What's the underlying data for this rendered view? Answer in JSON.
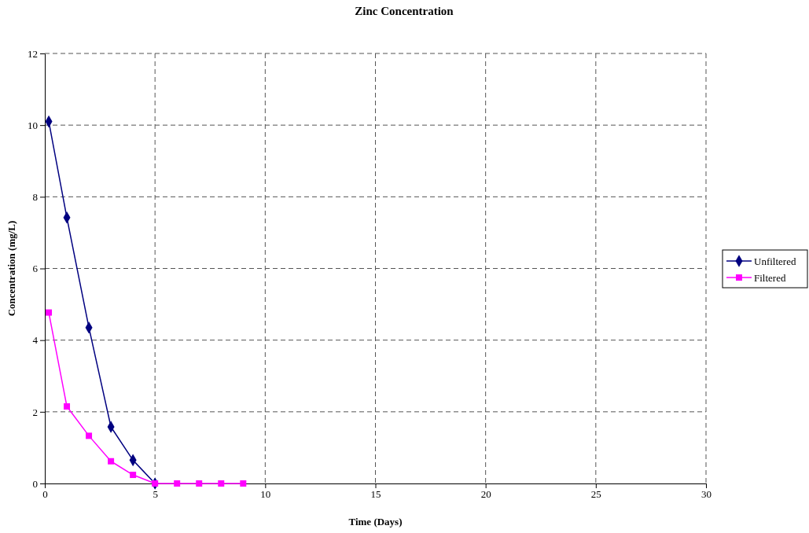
{
  "chart_data": {
    "type": "line",
    "title": "Zinc Concentration",
    "xlabel": "Time (Days)",
    "ylabel": "Concentration (mg/L)",
    "xlim": [
      0,
      30
    ],
    "xticks": [
      0,
      5,
      10,
      15,
      20,
      25,
      30
    ],
    "ylim": [
      0,
      12
    ],
    "yticks": [
      0,
      2,
      4,
      6,
      8,
      10,
      12
    ],
    "grid": true,
    "legend": "right",
    "series": [
      {
        "name": "Unfiltered",
        "color": "#000080",
        "marker": "diamond",
        "x": [
          0.18,
          1,
          2,
          3,
          4,
          5
        ],
        "values": [
          10.1,
          7.42,
          4.35,
          1.58,
          0.65,
          0
        ]
      },
      {
        "name": "Filtered",
        "color": "#ff00ff",
        "marker": "square",
        "x": [
          0.18,
          1,
          2,
          3,
          4,
          5,
          6,
          7,
          8,
          9
        ],
        "values": [
          4.77,
          2.15,
          1.33,
          0.62,
          0.24,
          0,
          0,
          0,
          0,
          0
        ]
      }
    ]
  }
}
